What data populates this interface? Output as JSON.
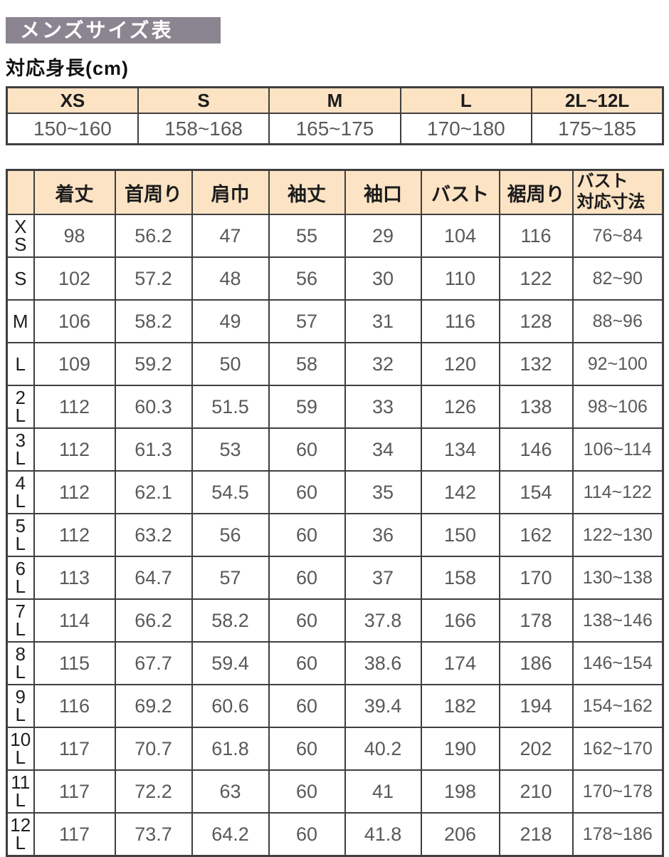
{
  "title": "メンズサイズ表",
  "height_section": {
    "label": "対応身長(cm)",
    "columns": [
      "XS",
      "S",
      "M",
      "L",
      "2L~12L"
    ],
    "values": [
      "150~160",
      "158~168",
      "165~175",
      "170~180",
      "175~185"
    ]
  },
  "size_table": {
    "corner": "",
    "columns": [
      "着丈",
      "首周り",
      "肩巾",
      "袖丈",
      "袖口",
      "バスト",
      "裾周り",
      "バスト\n対応寸法"
    ],
    "rows": [
      {
        "size": "XS",
        "display": "X\nS",
        "values": [
          "98",
          "56.2",
          "47",
          "55",
          "29",
          "104",
          "116",
          "76~84"
        ]
      },
      {
        "size": "S",
        "display": "S",
        "values": [
          "102",
          "57.2",
          "48",
          "56",
          "30",
          "110",
          "122",
          "82~90"
        ]
      },
      {
        "size": "M",
        "display": "M",
        "values": [
          "106",
          "58.2",
          "49",
          "57",
          "31",
          "116",
          "128",
          "88~96"
        ]
      },
      {
        "size": "L",
        "display": "L",
        "values": [
          "109",
          "59.2",
          "50",
          "58",
          "32",
          "120",
          "132",
          "92~100"
        ]
      },
      {
        "size": "2L",
        "display": "2\nL",
        "values": [
          "112",
          "60.3",
          "51.5",
          "59",
          "33",
          "126",
          "138",
          "98~106"
        ]
      },
      {
        "size": "3L",
        "display": "3\nL",
        "values": [
          "112",
          "61.3",
          "53",
          "60",
          "34",
          "134",
          "146",
          "106~114"
        ]
      },
      {
        "size": "4L",
        "display": "4\nL",
        "values": [
          "112",
          "62.1",
          "54.5",
          "60",
          "35",
          "142",
          "154",
          "114~122"
        ]
      },
      {
        "size": "5L",
        "display": "5\nL",
        "values": [
          "112",
          "63.2",
          "56",
          "60",
          "36",
          "150",
          "162",
          "122~130"
        ]
      },
      {
        "size": "6L",
        "display": "6\nL",
        "values": [
          "113",
          "64.7",
          "57",
          "60",
          "37",
          "158",
          "170",
          "130~138"
        ]
      },
      {
        "size": "7L",
        "display": "7\nL",
        "values": [
          "114",
          "66.2",
          "58.2",
          "60",
          "37.8",
          "166",
          "178",
          "138~146"
        ]
      },
      {
        "size": "8L",
        "display": "8\nL",
        "values": [
          "115",
          "67.7",
          "59.4",
          "60",
          "38.6",
          "174",
          "186",
          "146~154"
        ]
      },
      {
        "size": "9L",
        "display": "9\nL",
        "values": [
          "116",
          "69.2",
          "60.6",
          "60",
          "39.4",
          "182",
          "194",
          "154~162"
        ]
      },
      {
        "size": "10L",
        "display": "10\nL",
        "values": [
          "117",
          "70.7",
          "61.8",
          "60",
          "40.2",
          "190",
          "202",
          "162~170"
        ]
      },
      {
        "size": "11L",
        "display": "11\nL",
        "values": [
          "117",
          "72.2",
          "63",
          "60",
          "41",
          "198",
          "210",
          "170~178"
        ]
      },
      {
        "size": "12L",
        "display": "12\nL",
        "values": [
          "117",
          "73.7",
          "64.2",
          "60",
          "41.8",
          "206",
          "218",
          "178~186"
        ]
      }
    ]
  },
  "colors": {
    "title_bar_bg": "#8a8591",
    "header_cell_bg": "#fbe3c4",
    "border": "#3f3f3f",
    "value_text": "#595959",
    "header_text": "#1c1c1c"
  }
}
